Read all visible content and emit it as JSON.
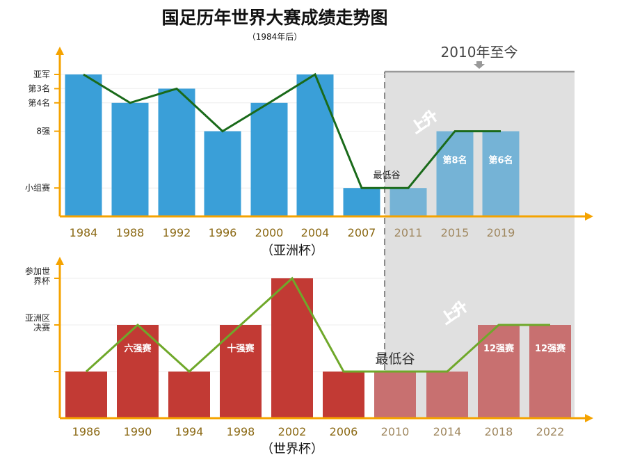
{
  "title": "国足历年世界大赛成绩走势图",
  "subtitle": "（1984年后）",
  "period_label": "2010年至今",
  "colors": {
    "asia_bar": "#3a9fd8",
    "asia_bar_recent": "#75b3d6",
    "asia_line": "#1a6a1a",
    "world_bar": "#c23a34",
    "world_bar_recent": "#c87070",
    "world_line": "#6fa82a",
    "axis": "#f5a300",
    "year_label": "#8b6914",
    "year_label_recent": "#a08860",
    "shade": "#e0e0e0",
    "rise_up_asia": "#5cc7b5",
    "rise_up_world": "#e98a8a"
  },
  "chart_data": [
    {
      "type": "bar",
      "title": "（亚洲杯）",
      "categories": [
        "1984",
        "1988",
        "1992",
        "1996",
        "2000",
        "2004",
        "2007",
        "2011",
        "2015",
        "2019"
      ],
      "y_levels": [
        "小组赛",
        "8强",
        "第4名",
        "第3名",
        "亚军"
      ],
      "level_values": [
        1,
        3,
        4,
        4.5,
        5
      ],
      "values": [
        5,
        4,
        4.5,
        3,
        4,
        5,
        1,
        1,
        3,
        3
      ],
      "ylim": [
        0,
        5
      ],
      "bar_labels": [
        "",
        "",
        "",
        "",
        "",
        "",
        "",
        "",
        "第8名",
        "第6名"
      ],
      "line_values": [
        5,
        4,
        4.5,
        3,
        4,
        5,
        1,
        1,
        3,
        3
      ],
      "annotations": [
        {
          "text": "最低谷",
          "at": "2007"
        },
        {
          "text": "上升",
          "at": "2015"
        }
      ]
    },
    {
      "type": "bar",
      "title": "（世界杯）",
      "categories": [
        "1986",
        "1990",
        "1994",
        "1998",
        "2002",
        "2006",
        "2010",
        "2014",
        "2018",
        "2022"
      ],
      "y_levels": [
        "",
        "亚洲区决赛",
        "参加世界杯"
      ],
      "level_values": [
        1,
        2,
        3
      ],
      "values": [
        1,
        2,
        1,
        2,
        3,
        1,
        1,
        1,
        2,
        2
      ],
      "ylim": [
        0,
        3
      ],
      "bar_labels": [
        "",
        "六强赛",
        "",
        "十强赛",
        "",
        "",
        "",
        "",
        "12强赛",
        "12强赛"
      ],
      "line_values": [
        1,
        2,
        1,
        2,
        3,
        1,
        1,
        1,
        2,
        2
      ],
      "annotations": [
        {
          "text": "最低谷",
          "at": "2010"
        },
        {
          "text": "上升",
          "at": "2018"
        }
      ]
    }
  ]
}
